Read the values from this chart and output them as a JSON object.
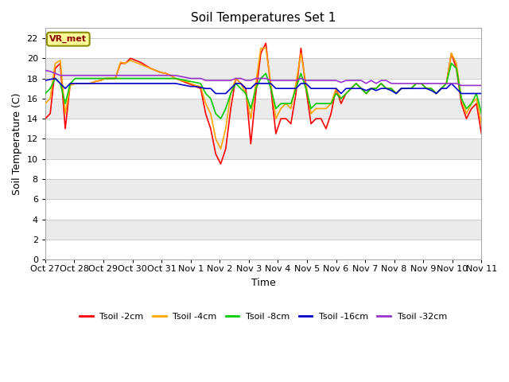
{
  "title": "Soil Temperatures Set 1",
  "xlabel": "Time",
  "ylabel": "Soil Temperature (C)",
  "ylim": [
    0,
    23
  ],
  "yticks": [
    0,
    2,
    4,
    6,
    8,
    10,
    12,
    14,
    16,
    18,
    20,
    22
  ],
  "xtick_labels": [
    "Oct 27",
    "Oct 28",
    "Oct 29",
    "Oct 30",
    "Oct 31",
    "Nov 1",
    "Nov 2",
    "Nov 3",
    "Nov 4",
    "Nov 5",
    "Nov 6",
    "Nov 7",
    "Nov 8",
    "Nov 9",
    "Nov 10",
    "Nov 11"
  ],
  "annotation_text": "VR_met",
  "annotation_color": "#8B0000",
  "annotation_bg": "#FFFF99",
  "annotation_border": "#8B8B00",
  "fig_bg": "#FFFFFF",
  "plot_bg_white": "#FFFFFF",
  "plot_bg_grey": "#EBEBEB",
  "grid_color": "#CCCCCC",
  "series": [
    {
      "label": "Tsoil -2cm",
      "color": "#FF0000"
    },
    {
      "label": "Tsoil -4cm",
      "color": "#FFA500"
    },
    {
      "label": "Tsoil -8cm",
      "color": "#00CC00"
    },
    {
      "label": "Tsoil -16cm",
      "color": "#0000CC"
    },
    {
      "label": "Tsoil -32cm",
      "color": "#9933CC"
    }
  ],
  "t2cm": [
    14.0,
    14.5,
    19.0,
    19.5,
    13.0,
    17.5,
    17.5,
    17.5,
    17.5,
    17.5,
    17.7,
    17.8,
    18.0,
    18.0,
    18.0,
    19.5,
    19.5,
    20.0,
    19.8,
    19.6,
    19.3,
    19.0,
    18.8,
    18.6,
    18.5,
    18.3,
    18.0,
    17.8,
    17.6,
    17.4,
    17.2,
    17.0,
    14.5,
    13.0,
    10.5,
    9.5,
    11.0,
    15.0,
    18.0,
    17.5,
    17.0,
    11.5,
    16.5,
    20.5,
    21.5,
    17.0,
    12.5,
    14.0,
    14.0,
    13.5,
    16.5,
    21.0,
    17.0,
    13.5,
    14.0,
    14.0,
    13.0,
    14.5,
    17.0,
    15.5,
    16.5,
    17.0,
    17.5,
    17.0,
    16.5,
    17.0,
    17.0,
    17.5,
    17.0,
    17.0,
    16.5,
    17.0,
    17.0,
    17.0,
    17.5,
    17.5,
    17.0,
    17.0,
    16.5,
    17.0,
    17.5,
    20.5,
    19.0,
    15.5,
    14.0,
    15.0,
    15.5,
    12.5
  ],
  "t4cm": [
    15.5,
    16.0,
    19.5,
    19.8,
    14.5,
    17.3,
    17.5,
    17.5,
    17.5,
    17.5,
    17.7,
    17.8,
    18.0,
    18.0,
    18.0,
    19.6,
    19.5,
    19.8,
    19.6,
    19.4,
    19.2,
    19.0,
    18.8,
    18.6,
    18.5,
    18.3,
    18.0,
    17.8,
    17.7,
    17.5,
    17.3,
    17.2,
    15.5,
    14.5,
    12.0,
    11.0,
    13.0,
    16.5,
    18.0,
    17.5,
    16.5,
    14.0,
    17.5,
    21.0,
    21.0,
    17.5,
    14.0,
    15.0,
    15.5,
    15.0,
    17.5,
    20.5,
    17.5,
    14.5,
    15.0,
    15.0,
    15.0,
    15.5,
    17.0,
    16.0,
    16.5,
    17.0,
    17.5,
    17.0,
    16.5,
    17.0,
    17.0,
    17.5,
    17.0,
    17.0,
    16.5,
    17.0,
    17.0,
    17.0,
    17.5,
    17.5,
    17.0,
    17.0,
    16.5,
    17.0,
    17.5,
    20.5,
    19.5,
    16.0,
    14.5,
    15.5,
    16.0,
    13.5
  ],
  "t8cm": [
    16.5,
    17.0,
    18.0,
    17.5,
    15.5,
    17.5,
    18.0,
    18.0,
    18.0,
    18.0,
    18.0,
    18.0,
    18.0,
    18.0,
    18.0,
    18.0,
    18.0,
    18.0,
    18.0,
    18.0,
    18.0,
    18.0,
    18.0,
    18.0,
    18.0,
    18.0,
    18.0,
    17.9,
    17.8,
    17.7,
    17.6,
    17.5,
    16.5,
    16.0,
    14.5,
    14.0,
    15.0,
    16.5,
    17.5,
    17.0,
    16.5,
    15.0,
    17.0,
    18.0,
    18.5,
    17.0,
    15.0,
    15.5,
    15.5,
    15.5,
    17.0,
    18.5,
    17.0,
    15.0,
    15.5,
    15.5,
    15.5,
    15.5,
    16.5,
    16.0,
    16.5,
    17.0,
    17.5,
    17.0,
    16.5,
    17.0,
    17.0,
    17.5,
    17.0,
    17.0,
    16.5,
    17.0,
    17.0,
    17.0,
    17.5,
    17.5,
    17.0,
    17.0,
    16.5,
    17.0,
    17.5,
    19.5,
    19.0,
    16.0,
    15.0,
    15.5,
    16.5,
    14.5
  ],
  "t16cm": [
    17.8,
    17.9,
    18.0,
    17.5,
    17.0,
    17.5,
    17.5,
    17.5,
    17.5,
    17.5,
    17.5,
    17.5,
    17.5,
    17.5,
    17.5,
    17.5,
    17.5,
    17.5,
    17.5,
    17.5,
    17.5,
    17.5,
    17.5,
    17.5,
    17.5,
    17.5,
    17.5,
    17.4,
    17.3,
    17.2,
    17.2,
    17.1,
    17.0,
    17.0,
    16.5,
    16.5,
    16.5,
    17.0,
    17.5,
    17.5,
    17.0,
    17.0,
    17.5,
    17.5,
    17.5,
    17.5,
    17.0,
    17.0,
    17.0,
    17.0,
    17.0,
    17.5,
    17.5,
    17.0,
    17.0,
    17.0,
    17.0,
    17.0,
    17.0,
    16.5,
    17.0,
    17.0,
    17.0,
    17.0,
    16.8,
    17.0,
    16.8,
    17.0,
    17.0,
    16.8,
    16.5,
    17.0,
    17.0,
    17.0,
    17.0,
    17.0,
    17.0,
    16.8,
    16.5,
    17.0,
    17.0,
    17.5,
    17.0,
    16.5,
    16.5,
    16.5,
    16.5,
    16.5
  ],
  "t32cm": [
    18.8,
    18.7,
    18.5,
    18.3,
    18.3,
    18.3,
    18.3,
    18.3,
    18.3,
    18.3,
    18.3,
    18.3,
    18.3,
    18.3,
    18.3,
    18.3,
    18.3,
    18.3,
    18.3,
    18.3,
    18.3,
    18.3,
    18.3,
    18.3,
    18.3,
    18.3,
    18.3,
    18.2,
    18.1,
    18.0,
    18.0,
    18.0,
    17.8,
    17.8,
    17.8,
    17.8,
    17.8,
    17.8,
    18.0,
    18.0,
    17.8,
    17.8,
    18.0,
    18.0,
    18.0,
    17.8,
    17.8,
    17.8,
    17.8,
    17.8,
    17.8,
    18.0,
    17.8,
    17.8,
    17.8,
    17.8,
    17.8,
    17.8,
    17.8,
    17.6,
    17.8,
    17.8,
    17.8,
    17.8,
    17.5,
    17.8,
    17.5,
    17.8,
    17.8,
    17.5,
    17.5,
    17.5,
    17.5,
    17.5,
    17.5,
    17.5,
    17.5,
    17.5,
    17.5,
    17.5,
    17.5,
    17.5,
    17.5,
    17.3,
    17.3,
    17.3,
    17.3,
    17.3
  ]
}
